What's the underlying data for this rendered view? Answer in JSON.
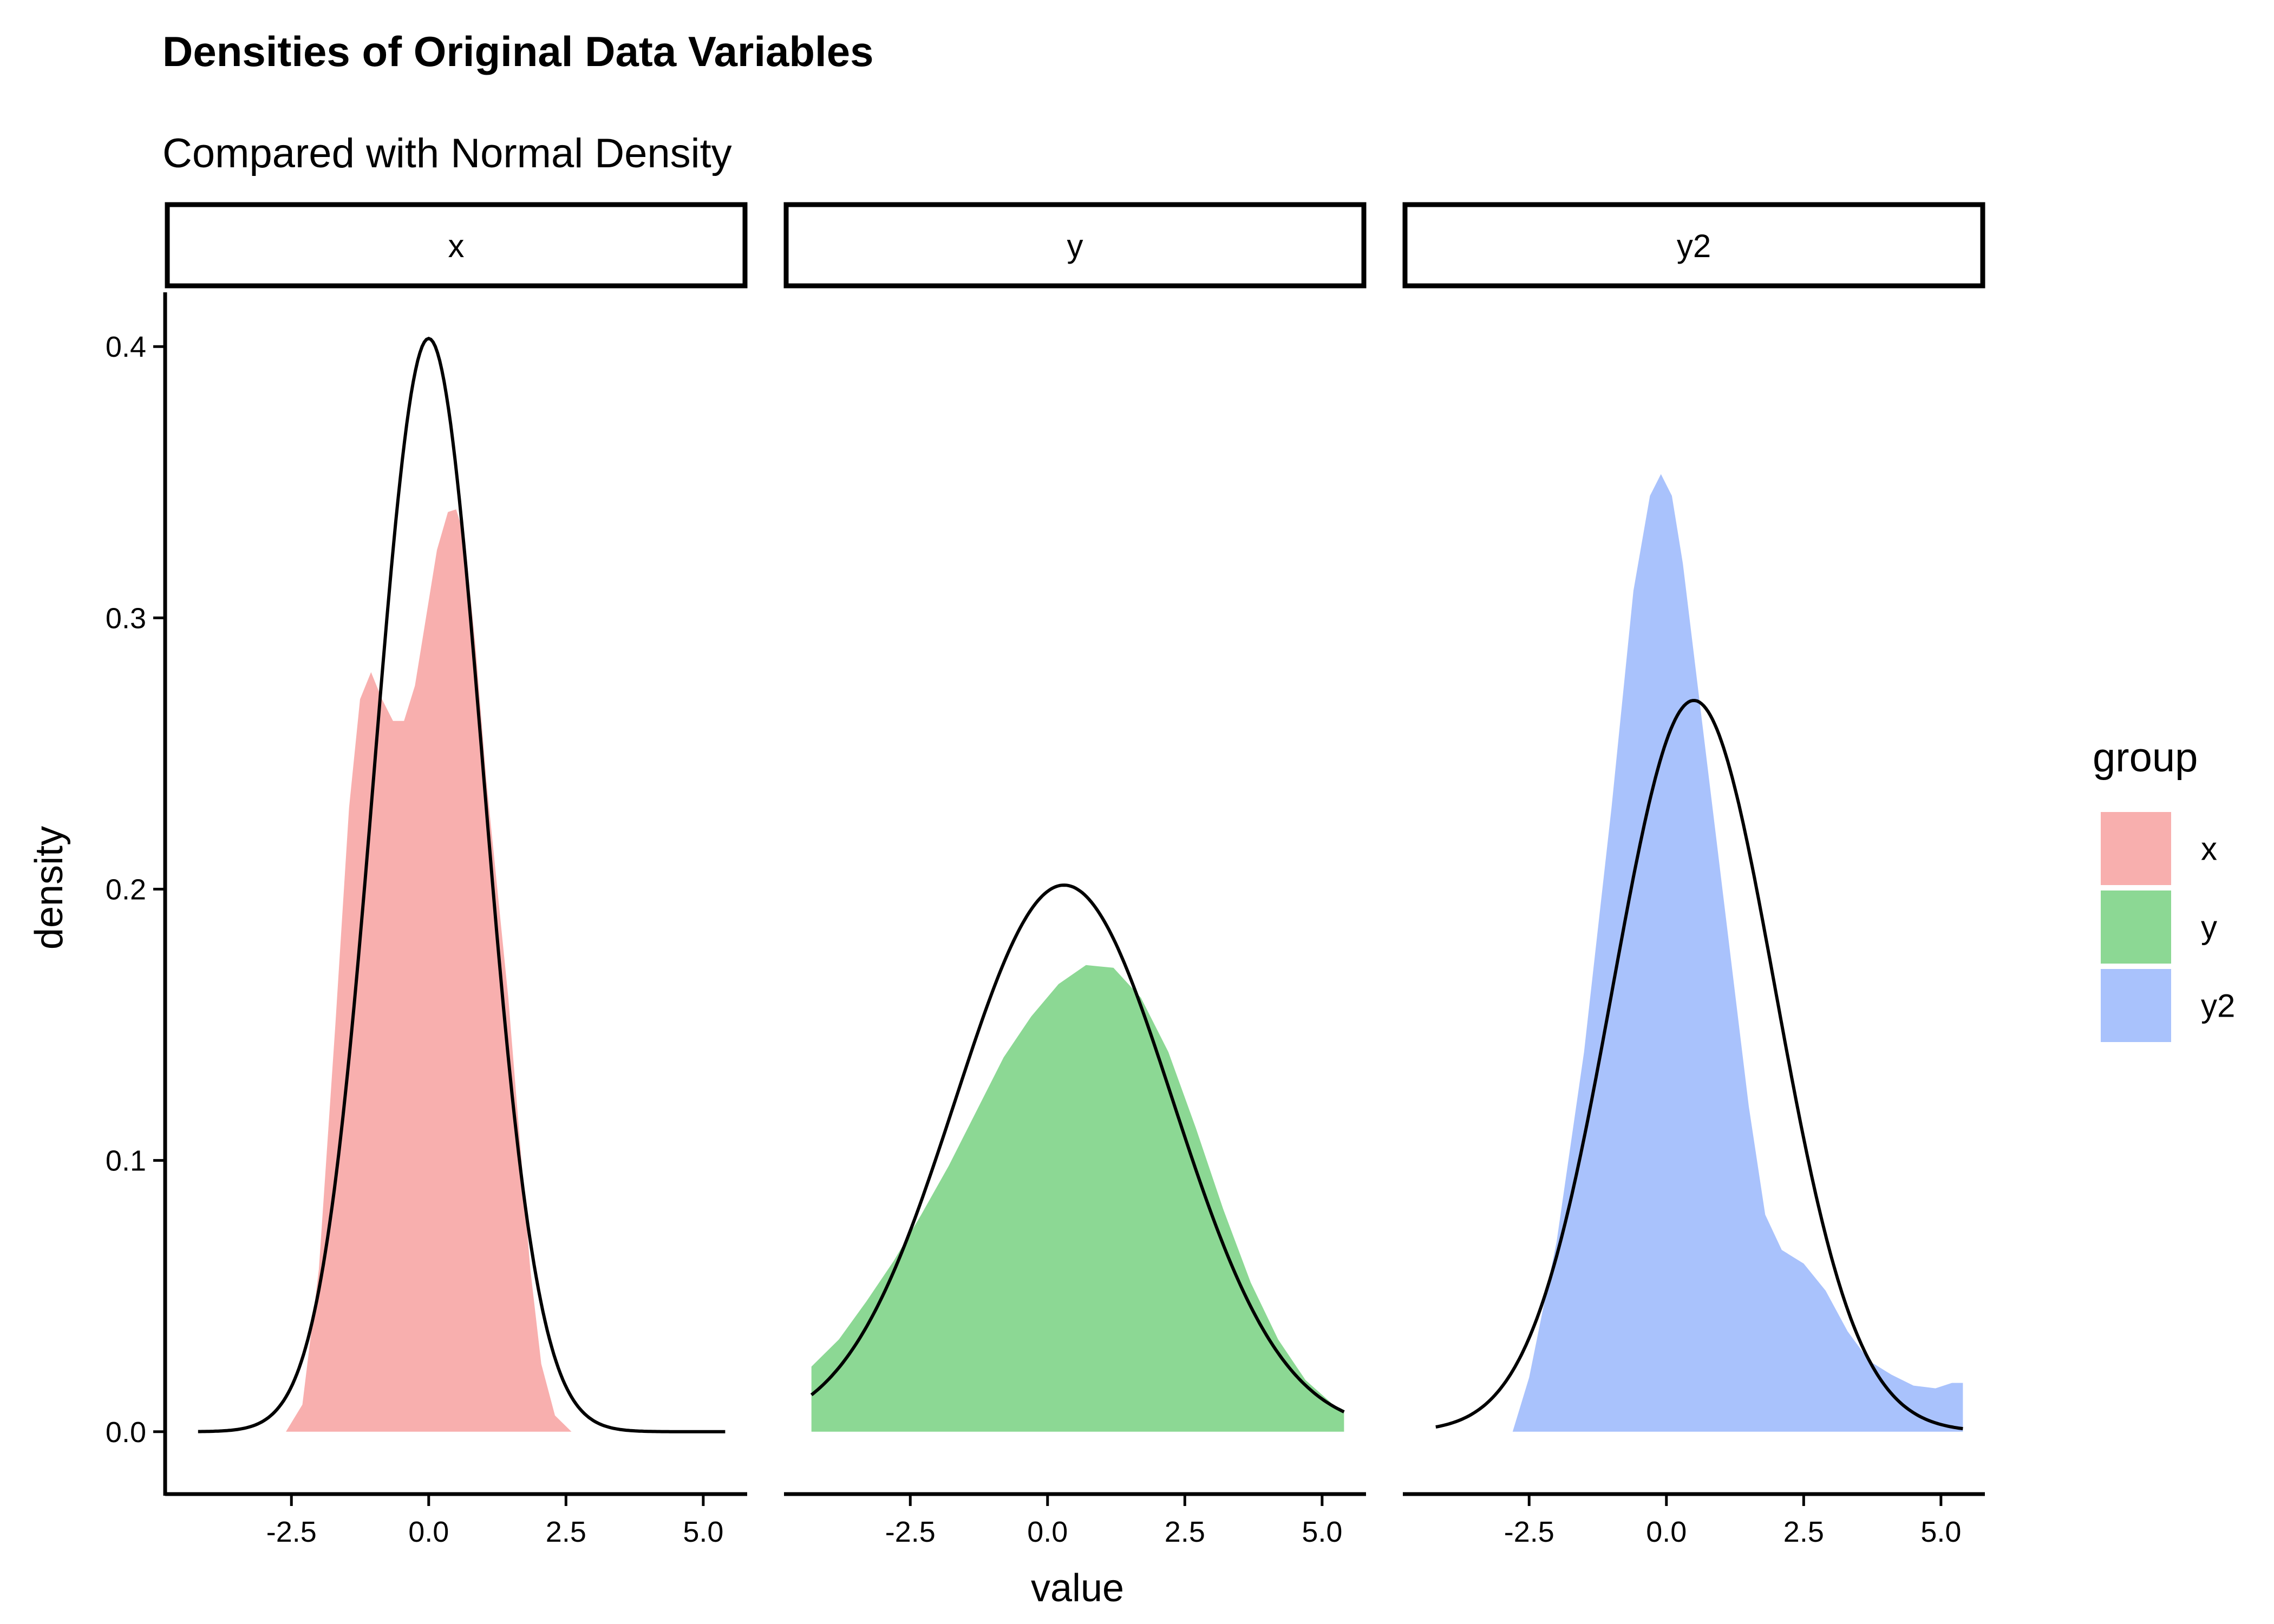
{
  "title": "Densities of Original Data Variables",
  "subtitle": "Compared with Normal Density",
  "chart_data": {
    "type": "area",
    "xlabel": "value",
    "ylabel": "density",
    "xlim": [
      -4.8,
      5.8
    ],
    "ylim": [
      -0.02,
      0.42
    ],
    "x_ticks": [
      -2.5,
      0.0,
      2.5,
      5.0
    ],
    "x_tick_labels": [
      "-2.5",
      "0.0",
      "2.5",
      "5.0"
    ],
    "y_ticks": [
      0.0,
      0.1,
      0.2,
      0.3,
      0.4
    ],
    "y_tick_labels": [
      "0.0",
      "0.1",
      "0.2",
      "0.3",
      "0.4"
    ],
    "grid": false,
    "legend": {
      "title": "group",
      "position": "right",
      "entries": [
        {
          "label": "x",
          "color": "#F8AFAE"
        },
        {
          "label": "y",
          "color": "#8CD894"
        },
        {
          "label": "y2",
          "color": "#A9C2FC"
        }
      ]
    },
    "facets": [
      {
        "strip": "x",
        "color": "#F8AFAE",
        "density": [
          [
            -2.6,
            0.0
          ],
          [
            -2.3,
            0.01
          ],
          [
            -2.0,
            0.06
          ],
          [
            -1.7,
            0.15
          ],
          [
            -1.45,
            0.23
          ],
          [
            -1.25,
            0.27
          ],
          [
            -1.05,
            0.28
          ],
          [
            -0.85,
            0.27
          ],
          [
            -0.65,
            0.262
          ],
          [
            -0.45,
            0.262
          ],
          [
            -0.25,
            0.275
          ],
          [
            -0.05,
            0.3
          ],
          [
            0.15,
            0.325
          ],
          [
            0.35,
            0.339
          ],
          [
            0.5,
            0.34
          ],
          [
            0.65,
            0.33
          ],
          [
            0.85,
            0.29
          ],
          [
            1.05,
            0.24
          ],
          [
            1.25,
            0.2
          ],
          [
            1.45,
            0.16
          ],
          [
            1.65,
            0.11
          ],
          [
            1.85,
            0.06
          ],
          [
            2.05,
            0.025
          ],
          [
            2.3,
            0.006
          ],
          [
            2.6,
            0.0
          ]
        ],
        "normal_curve": {
          "mean": 0.0,
          "sd": 0.99,
          "x_range": [
            -4.2,
            5.4
          ]
        }
      },
      {
        "strip": "y",
        "color": "#8CD894",
        "density": [
          [
            -4.3,
            0.024
          ],
          [
            -3.8,
            0.034
          ],
          [
            -3.3,
            0.048
          ],
          [
            -2.8,
            0.063
          ],
          [
            -2.3,
            0.08
          ],
          [
            -1.8,
            0.098
          ],
          [
            -1.3,
            0.118
          ],
          [
            -0.8,
            0.138
          ],
          [
            -0.3,
            0.153
          ],
          [
            0.2,
            0.165
          ],
          [
            0.7,
            0.172
          ],
          [
            1.2,
            0.171
          ],
          [
            1.7,
            0.16
          ],
          [
            2.2,
            0.14
          ],
          [
            2.7,
            0.112
          ],
          [
            3.2,
            0.082
          ],
          [
            3.7,
            0.055
          ],
          [
            4.2,
            0.034
          ],
          [
            4.7,
            0.019
          ],
          [
            5.2,
            0.01
          ],
          [
            5.4,
            0.008
          ]
        ],
        "normal_curve": {
          "mean": 0.3,
          "sd": 1.98,
          "x_range": [
            -4.3,
            5.4
          ]
        }
      },
      {
        "strip": "y2",
        "color": "#A9C2FC",
        "density": [
          [
            -2.8,
            0.0
          ],
          [
            -2.5,
            0.02
          ],
          [
            -2.0,
            0.07
          ],
          [
            -1.5,
            0.14
          ],
          [
            -1.0,
            0.23
          ],
          [
            -0.6,
            0.31
          ],
          [
            -0.3,
            0.345
          ],
          [
            -0.1,
            0.353
          ],
          [
            0.1,
            0.345
          ],
          [
            0.3,
            0.32
          ],
          [
            0.6,
            0.27
          ],
          [
            0.9,
            0.22
          ],
          [
            1.2,
            0.17
          ],
          [
            1.5,
            0.12
          ],
          [
            1.8,
            0.08
          ],
          [
            2.1,
            0.067
          ],
          [
            2.5,
            0.062
          ],
          [
            2.9,
            0.052
          ],
          [
            3.3,
            0.037
          ],
          [
            3.7,
            0.026
          ],
          [
            4.1,
            0.021
          ],
          [
            4.5,
            0.017
          ],
          [
            4.9,
            0.016
          ],
          [
            5.2,
            0.018
          ],
          [
            5.4,
            0.018
          ]
        ],
        "normal_curve": {
          "mean": 0.5,
          "sd": 1.48,
          "x_range": [
            -4.2,
            5.4
          ]
        }
      }
    ]
  }
}
